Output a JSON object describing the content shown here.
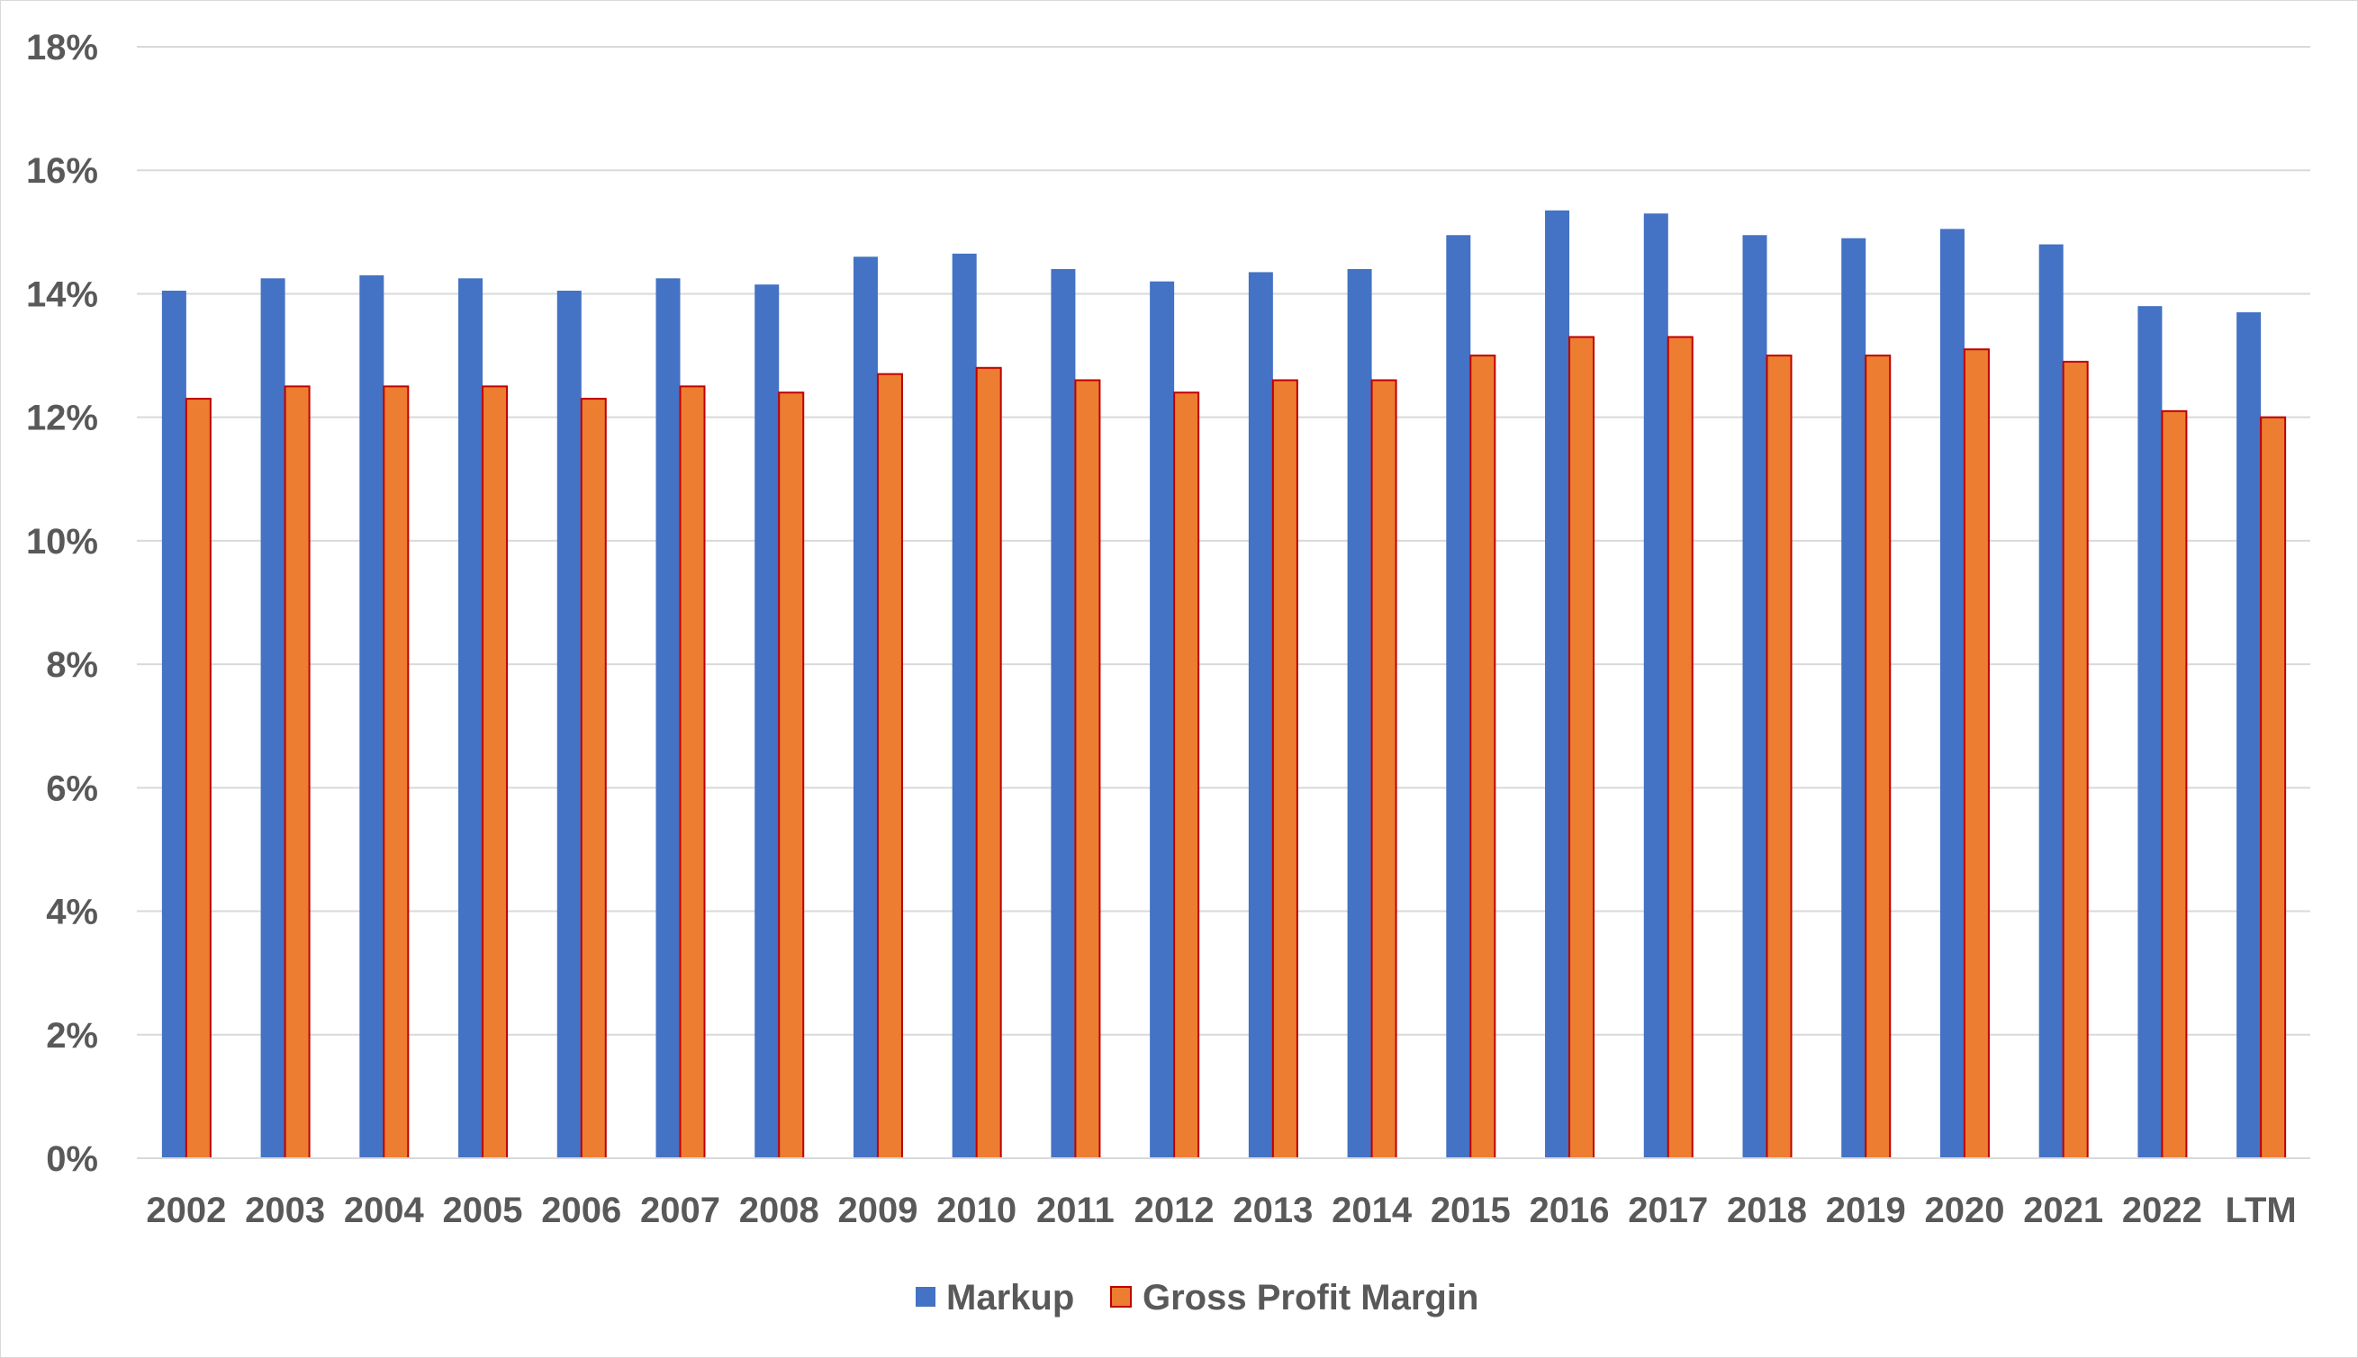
{
  "chart_data": {
    "type": "bar",
    "title": "",
    "xlabel": "",
    "ylabel": "",
    "ylim": [
      0,
      18
    ],
    "y_ticks": [
      "0%",
      "2%",
      "4%",
      "6%",
      "8%",
      "10%",
      "12%",
      "14%",
      "16%",
      "18%"
    ],
    "grid": "horizontal",
    "legend_position": "bottom",
    "categories": [
      "2002",
      "2003",
      "2004",
      "2005",
      "2006",
      "2007",
      "2008",
      "2009",
      "2010",
      "2011",
      "2012",
      "2013",
      "2014",
      "2015",
      "2016",
      "2017",
      "2018",
      "2019",
      "2020",
      "2021",
      "2022",
      "LTM"
    ],
    "series": [
      {
        "name": "Markup",
        "color": "#4472C4",
        "values": [
          14.05,
          14.25,
          14.3,
          14.25,
          14.05,
          14.25,
          14.15,
          14.6,
          14.65,
          14.4,
          14.2,
          14.35,
          14.4,
          14.95,
          15.35,
          15.3,
          14.95,
          14.9,
          15.05,
          14.8,
          13.8,
          13.7
        ]
      },
      {
        "name": "Gross Profit Margin",
        "color": "#ED7D31",
        "border_color": "#C00000",
        "values": [
          12.3,
          12.5,
          12.5,
          12.5,
          12.3,
          12.5,
          12.4,
          12.7,
          12.8,
          12.6,
          12.4,
          12.6,
          12.6,
          13.0,
          13.3,
          13.3,
          13.0,
          13.0,
          13.1,
          12.9,
          12.1,
          12.0
        ]
      }
    ]
  }
}
